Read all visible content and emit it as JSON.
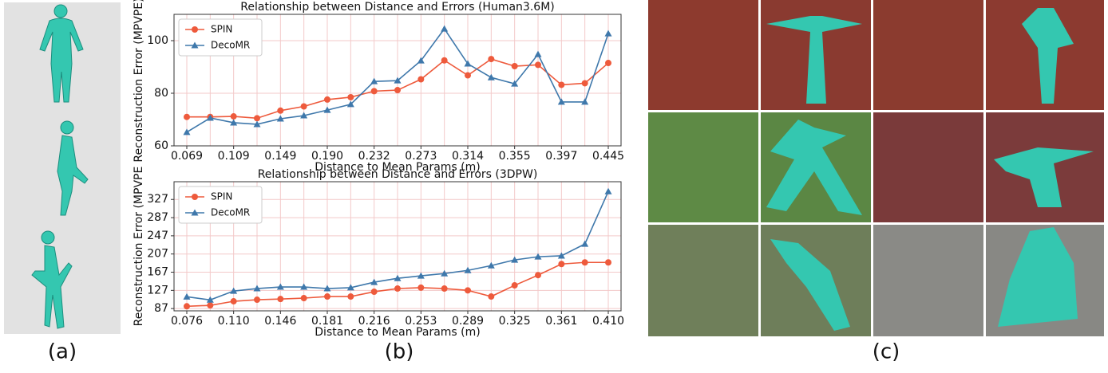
{
  "panel_labels": [
    "(a)",
    "(b)",
    "(c)"
  ],
  "chart_data": [
    {
      "type": "line",
      "title": "Relationship between Distance and Errors (Human3.6M)",
      "x_label": "Distance to Mean Params (m)",
      "y_label": "Reconstruction Error (MPVPE)",
      "categories": [
        "0.069",
        null,
        "0.109",
        null,
        "0.149",
        null,
        "0.190",
        null,
        "0.232",
        null,
        "0.273",
        null,
        "0.314",
        null,
        "0.355",
        null,
        "0.397",
        null,
        "0.445"
      ],
      "series": [
        {
          "name": "SPIN",
          "color": "#ee5a3c",
          "marker": "circle",
          "values": [
            71,
            71,
            71.2,
            70.5,
            73.4,
            75,
            77.6,
            78.5,
            80.8,
            81.2,
            85.3,
            92.5,
            86.8,
            93,
            90.3,
            90.8,
            83.2,
            83.8,
            91.5
          ]
        },
        {
          "name": "DecoMR",
          "color": "#3f78ab",
          "marker": "triangle",
          "values": [
            65.2,
            70.6,
            68.8,
            68.2,
            70.3,
            71.5,
            73.6,
            75.8,
            84.5,
            84.8,
            92.4,
            104.5,
            91.2,
            86,
            83.6,
            94.8,
            76.7,
            76.7,
            102.7
          ]
        }
      ],
      "ylim": [
        60,
        110
      ],
      "yticks": [
        60,
        80,
        100
      ],
      "grid": true,
      "legend": "upper left"
    },
    {
      "type": "line",
      "title": "Relationship between Distance and Errors (3DPW)",
      "x_label": "Distance to Mean Params (m)",
      "y_label": "Reconstruction Error (MPVPE",
      "categories": [
        "0.076",
        null,
        "0.110",
        null,
        "0.146",
        null,
        "0.181",
        null,
        "0.216",
        null,
        "0.253",
        null,
        "0.289",
        null,
        "0.325",
        null,
        "0.361",
        null,
        "0.410"
      ],
      "series": [
        {
          "name": "SPIN",
          "color": "#ee5a3c",
          "marker": "circle",
          "values": [
            92,
            94,
            103,
            106.5,
            108,
            110,
            113.5,
            113.5,
            124,
            131,
            133,
            131,
            127,
            113.5,
            138,
            160.5,
            185,
            188.5,
            188.5
          ]
        },
        {
          "name": "DecoMR",
          "color": "#3f78ab",
          "marker": "triangle",
          "values": [
            113,
            106,
            125.5,
            131,
            134.5,
            134.5,
            131,
            133,
            145,
            153.5,
            159,
            164,
            171,
            181.5,
            194,
            201,
            203,
            229,
            344.5
          ]
        }
      ],
      "ylim": [
        82,
        366
      ],
      "yticks": [
        87,
        127,
        167,
        207,
        247,
        287,
        327
      ],
      "grid": true,
      "legend": "upper left"
    }
  ]
}
